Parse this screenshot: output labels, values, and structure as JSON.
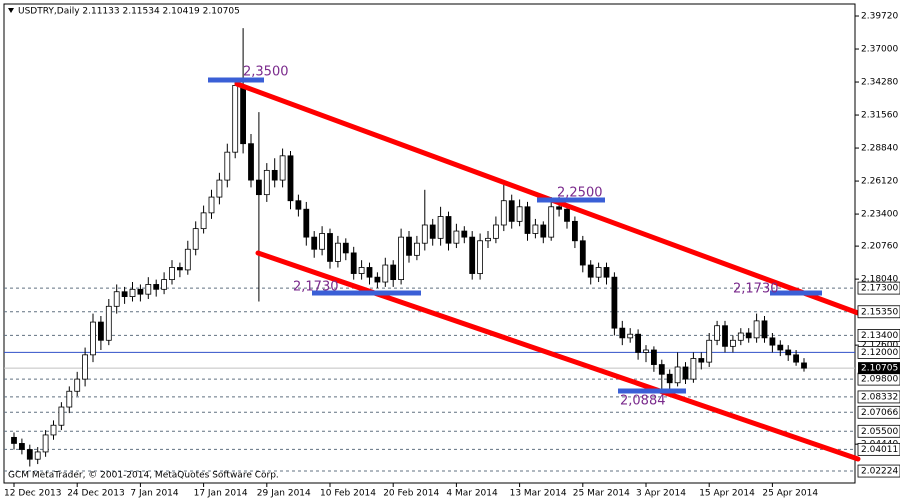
{
  "chart_data": {
    "type": "candlestick",
    "title": "USDTRY,Daily  2.11133 2.11534 2.10419 2.10705",
    "footer": "GCM MetaTrader, © 2001-2014, MetaQuotes Software Corp.",
    "bull_color": "#ffffff",
    "bear_color": "#000000",
    "line_color": "#000000",
    "categories": [
      "12 Dec 2013",
      null,
      null,
      null,
      null,
      null,
      null,
      null,
      "24 Dec 2013",
      null,
      null,
      null,
      null,
      null,
      null,
      null,
      "7 Jan 2014",
      null,
      null,
      null,
      null,
      null,
      null,
      null,
      "17 Jan 2014",
      null,
      null,
      null,
      null,
      null,
      null,
      null,
      "29 Jan 2014",
      null,
      null,
      null,
      null,
      null,
      null,
      null,
      "10 Feb 2014",
      null,
      null,
      null,
      null,
      null,
      null,
      null,
      "20 Feb 2014",
      null,
      null,
      null,
      null,
      null,
      null,
      null,
      "4 Mar 2014",
      null,
      null,
      null,
      null,
      null,
      null,
      null,
      "13 Mar 2014",
      null,
      null,
      null,
      null,
      null,
      null,
      null,
      "25 Mar 2014",
      null,
      null,
      null,
      null,
      null,
      null,
      null,
      "3 Apr 2014",
      null,
      null,
      null,
      null,
      null,
      null,
      null,
      "15 Apr 2014",
      null,
      null,
      null,
      null,
      null,
      null,
      null,
      "25 Apr 2014",
      null,
      null,
      null,
      null
    ],
    "ohlc": [
      [
        2.05,
        2.054,
        2.04,
        2.045
      ],
      [
        2.045,
        2.049,
        2.036,
        2.04
      ],
      [
        2.04,
        2.044,
        2.026,
        2.032
      ],
      [
        2.032,
        2.042,
        2.028,
        2.038
      ],
      [
        2.038,
        2.056,
        2.034,
        2.052
      ],
      [
        2.052,
        2.064,
        2.048,
        2.06
      ],
      [
        2.06,
        2.079,
        2.056,
        2.075
      ],
      [
        2.075,
        2.092,
        2.07,
        2.088
      ],
      [
        2.088,
        2.104,
        2.084,
        2.098
      ],
      [
        2.098,
        2.124,
        2.092,
        2.118
      ],
      [
        2.118,
        2.152,
        2.112,
        2.145
      ],
      [
        2.145,
        2.15,
        2.122,
        2.13
      ],
      [
        2.13,
        2.164,
        2.126,
        2.158
      ],
      [
        2.158,
        2.176,
        2.152,
        2.17
      ],
      [
        2.17,
        2.174,
        2.16,
        2.166
      ],
      [
        2.166,
        2.178,
        2.162,
        2.172
      ],
      [
        2.172,
        2.176,
        2.162,
        2.168
      ],
      [
        2.168,
        2.182,
        2.164,
        2.176
      ],
      [
        2.176,
        2.18,
        2.166,
        2.172
      ],
      [
        2.172,
        2.186,
        2.168,
        2.18
      ],
      [
        2.18,
        2.196,
        2.176,
        2.19
      ],
      [
        2.19,
        2.194,
        2.182,
        2.188
      ],
      [
        2.188,
        2.212,
        2.184,
        2.205
      ],
      [
        2.205,
        2.228,
        2.2,
        2.222
      ],
      [
        2.222,
        2.241,
        2.218,
        2.235
      ],
      [
        2.235,
        2.254,
        2.23,
        2.248
      ],
      [
        2.248,
        2.268,
        2.242,
        2.262
      ],
      [
        2.262,
        2.292,
        2.256,
        2.285
      ],
      [
        2.285,
        2.345,
        2.28,
        2.34
      ],
      [
        2.34,
        2.3872,
        2.284,
        2.292
      ],
      [
        2.292,
        2.3,
        2.256,
        2.262
      ],
      [
        2.262,
        2.318,
        2.162,
        2.25
      ],
      [
        2.25,
        2.276,
        2.244,
        2.27
      ],
      [
        2.27,
        2.28,
        2.256,
        2.262
      ],
      [
        2.262,
        2.288,
        2.256,
        2.282
      ],
      [
        2.282,
        2.286,
        2.238,
        2.245
      ],
      [
        2.245,
        2.25,
        2.232,
        2.238
      ],
      [
        2.238,
        2.244,
        2.208,
        2.215
      ],
      [
        2.215,
        2.22,
        2.198,
        2.205
      ],
      [
        2.205,
        2.224,
        2.2,
        2.218
      ],
      [
        2.218,
        2.222,
        2.189,
        2.195
      ],
      [
        2.195,
        2.216,
        2.19,
        2.21
      ],
      [
        2.21,
        2.214,
        2.196,
        2.202
      ],
      [
        2.202,
        2.207,
        2.18,
        2.185
      ],
      [
        2.185,
        2.196,
        2.18,
        2.19
      ],
      [
        2.19,
        2.194,
        2.176,
        2.182
      ],
      [
        2.182,
        2.186,
        2.173,
        2.178
      ],
      [
        2.178,
        2.198,
        2.174,
        2.192
      ],
      [
        2.192,
        2.196,
        2.174,
        2.18
      ],
      [
        2.18,
        2.222,
        2.176,
        2.215
      ],
      [
        2.215,
        2.22,
        2.194,
        2.2
      ],
      [
        2.2,
        2.216,
        2.196,
        2.21
      ],
      [
        2.21,
        2.254,
        2.204,
        2.225
      ],
      [
        2.225,
        2.23,
        2.208,
        2.214
      ],
      [
        2.214,
        2.24,
        2.208,
        2.232
      ],
      [
        2.232,
        2.236,
        2.204,
        2.21
      ],
      [
        2.21,
        2.226,
        2.206,
        2.22
      ],
      [
        2.22,
        2.224,
        2.21,
        2.215
      ],
      [
        2.215,
        2.22,
        2.18,
        2.185
      ],
      [
        2.185,
        2.218,
        2.18,
        2.212
      ],
      [
        2.212,
        2.22,
        2.206,
        2.214
      ],
      [
        2.214,
        2.232,
        2.21,
        2.225
      ],
      [
        2.225,
        2.258,
        2.22,
        2.245
      ],
      [
        2.245,
        2.25,
        2.222,
        2.228
      ],
      [
        2.228,
        2.246,
        2.224,
        2.24
      ],
      [
        2.24,
        2.244,
        2.212,
        2.218
      ],
      [
        2.218,
        2.23,
        2.214,
        2.225
      ],
      [
        2.225,
        2.228,
        2.21,
        2.215
      ],
      [
        2.215,
        2.248,
        2.212,
        2.24
      ],
      [
        2.24,
        2.248,
        2.232,
        2.238
      ],
      [
        2.238,
        2.242,
        2.222,
        2.228
      ],
      [
        2.228,
        2.232,
        2.206,
        2.212
      ],
      [
        2.212,
        2.216,
        2.186,
        2.192
      ],
      [
        2.192,
        2.196,
        2.176,
        2.182
      ],
      [
        2.182,
        2.194,
        2.178,
        2.19
      ],
      [
        2.19,
        2.194,
        2.176,
        2.182
      ],
      [
        2.182,
        2.186,
        2.134,
        2.14
      ],
      [
        2.14,
        2.146,
        2.126,
        2.132
      ],
      [
        2.132,
        2.14,
        2.128,
        2.135
      ],
      [
        2.135,
        2.139,
        2.114,
        2.12
      ],
      [
        2.12,
        2.126,
        2.112,
        2.122
      ],
      [
        2.122,
        2.125,
        2.104,
        2.11
      ],
      [
        2.11,
        2.114,
        2.0884,
        2.102
      ],
      [
        2.102,
        2.106,
        2.09,
        2.095
      ],
      [
        2.095,
        2.12,
        2.092,
        2.108
      ],
      [
        2.108,
        2.112,
        2.094,
        2.098
      ],
      [
        2.098,
        2.12,
        2.095,
        2.115
      ],
      [
        2.115,
        2.12,
        2.106,
        2.112
      ],
      [
        2.112,
        2.136,
        2.108,
        2.13
      ],
      [
        2.13,
        2.146,
        2.126,
        2.142
      ],
      [
        2.142,
        2.146,
        2.12,
        2.125
      ],
      [
        2.125,
        2.134,
        2.12,
        2.13
      ],
      [
        2.13,
        2.14,
        2.126,
        2.136
      ],
      [
        2.136,
        2.14,
        2.128,
        2.132
      ],
      [
        2.132,
        2.152,
        2.128,
        2.146
      ],
      [
        2.146,
        2.15,
        2.128,
        2.132
      ],
      [
        2.132,
        2.136,
        2.12,
        2.126
      ],
      [
        2.126,
        2.13,
        2.117,
        2.122
      ],
      [
        2.122,
        2.126,
        2.113,
        2.118
      ],
      [
        2.118,
        2.122,
        2.109,
        2.112
      ],
      [
        2.11133,
        2.11534,
        2.10419,
        2.10705
      ]
    ],
    "ylim": [
      2.0124,
      2.4071
    ],
    "yticks": [
      {
        "value": 2.3972,
        "label": "2.39720"
      },
      {
        "value": 2.37,
        "label": "2.37000"
      },
      {
        "value": 2.3428,
        "label": "2.34280"
      },
      {
        "value": 2.3156,
        "label": "2.31560"
      },
      {
        "value": 2.2884,
        "label": "2.28840"
      },
      {
        "value": 2.2612,
        "label": "2.26120"
      },
      {
        "value": 2.234,
        "label": "2.23400"
      },
      {
        "value": 2.2076,
        "label": "2.20760"
      },
      {
        "value": 2.1804,
        "label": "2.18040"
      },
      {
        "value": 2.126,
        "label": "2.12600"
      },
      {
        "value": 2.0444,
        "label": "2.04440"
      }
    ],
    "levels": [
      {
        "value": 2.173,
        "label": "2.17300",
        "style": "dashed"
      },
      {
        "value": 2.1535,
        "label": "2.15350",
        "style": "dashed"
      },
      {
        "value": 2.134,
        "label": "2.13400",
        "style": "dashed"
      },
      {
        "value": 2.12,
        "label": "2.12000",
        "style": "solid"
      },
      {
        "value": 2.098,
        "label": "2.09800",
        "style": "dashed"
      },
      {
        "value": 2.08332,
        "label": "2.08332",
        "style": "dashed"
      },
      {
        "value": 2.07066,
        "label": "2.07066",
        "style": "dashed"
      },
      {
        "value": 2.055,
        "label": "2.05500",
        "style": "dashed"
      },
      {
        "value": 2.04011,
        "label": "2.04011",
        "style": "dashed"
      },
      {
        "value": 2.02224,
        "label": "2.02224",
        "style": "dashed"
      }
    ],
    "current_price": {
      "value": 2.10705,
      "label": "2.10705"
    },
    "annotations": [
      "2,3500",
      "2,2500",
      "2,1730",
      "2,1730",
      "2,0884"
    ]
  }
}
